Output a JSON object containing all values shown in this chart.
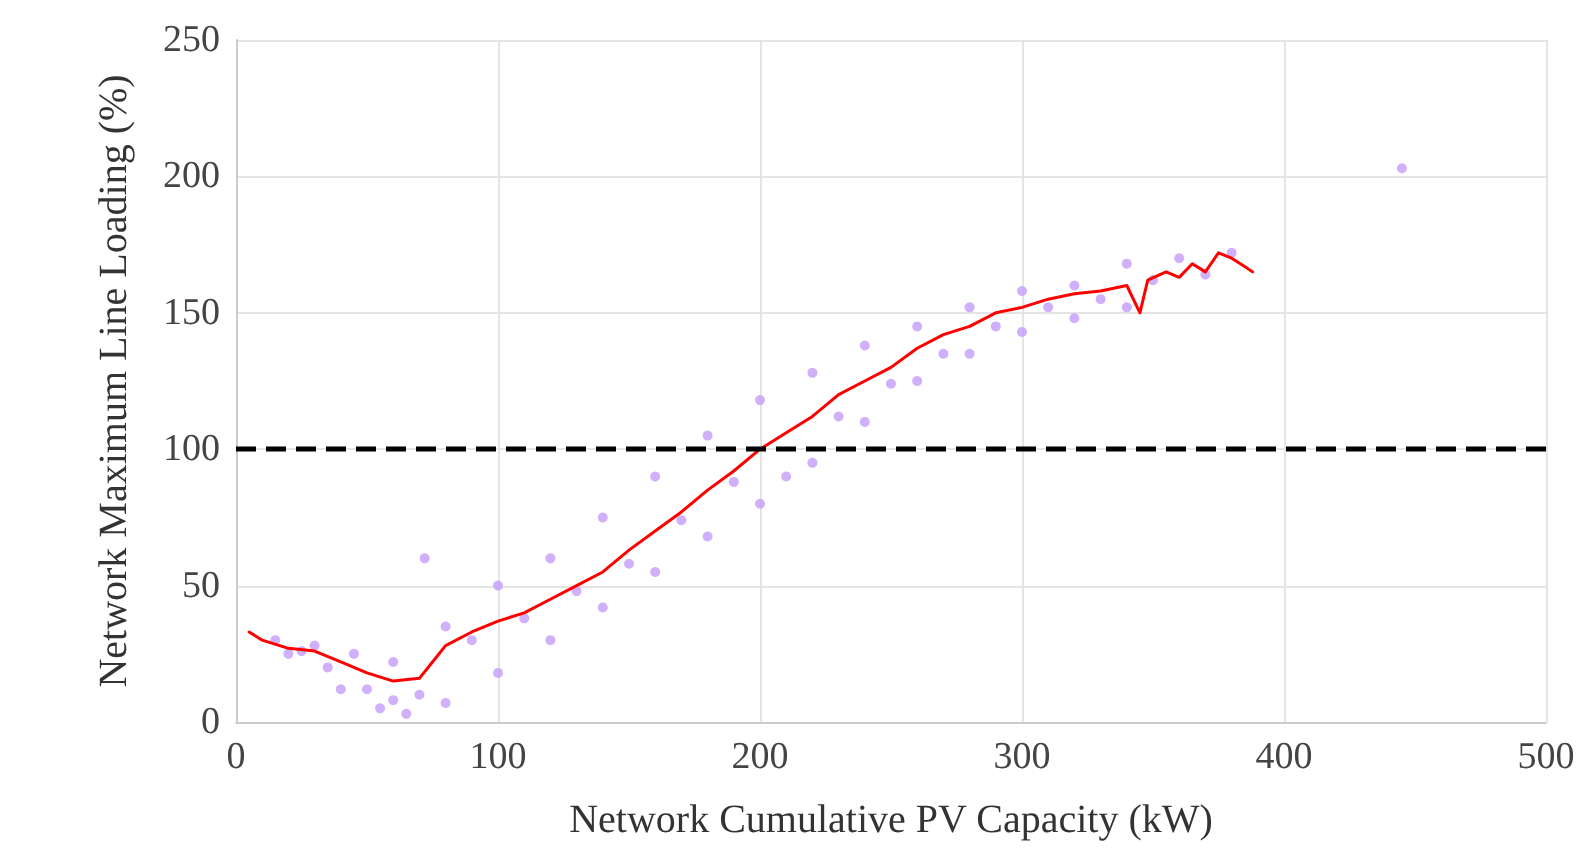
{
  "chart_data": {
    "type": "scatter",
    "xlabel": "Network Cumulative PV Capacity (kW)",
    "ylabel": "Network Maximum Line Loading (%)",
    "xlim": [
      0,
      500
    ],
    "xticks": [
      0,
      100,
      200,
      300,
      400,
      500
    ],
    "ylim": [
      0,
      250
    ],
    "yticks": [
      0,
      50,
      100,
      150,
      200,
      250
    ],
    "grid": true,
    "series": [
      {
        "color": "#c49cfa",
        "marker": "circle",
        "x": [
          15,
          30,
          45,
          60,
          72,
          80,
          100,
          120,
          140,
          160,
          180,
          200,
          220,
          240,
          260,
          280,
          300,
          320,
          340,
          360,
          380,
          20,
          40,
          55,
          65,
          80,
          100,
          120,
          140,
          160,
          180,
          200,
          220,
          240,
          260,
          280,
          300,
          320,
          340,
          25,
          35,
          50,
          60,
          70,
          90,
          110,
          130,
          150,
          170,
          190,
          210,
          230,
          250,
          270,
          290,
          310,
          330,
          350,
          370,
          445
        ],
        "values": [
          30,
          28,
          25,
          22,
          60,
          35,
          50,
          60,
          75,
          90,
          105,
          118,
          128,
          138,
          145,
          152,
          158,
          160,
          168,
          170,
          172,
          25,
          12,
          5,
          3,
          7,
          18,
          30,
          42,
          55,
          68,
          80,
          95,
          110,
          125,
          135,
          143,
          148,
          152,
          26,
          20,
          12,
          8,
          10,
          30,
          38,
          48,
          58,
          74,
          88,
          90,
          112,
          124,
          135,
          145,
          152,
          155,
          162,
          164,
          203
        ]
      },
      {
        "type": "line",
        "color": "#ff0000",
        "marker": "none",
        "x": [
          5,
          10,
          20,
          30,
          40,
          50,
          60,
          70,
          75,
          80,
          90,
          100,
          110,
          120,
          130,
          140,
          150,
          160,
          170,
          180,
          190,
          200,
          210,
          220,
          230,
          240,
          250,
          260,
          270,
          280,
          290,
          300,
          310,
          320,
          330,
          340,
          345,
          348,
          355,
          360,
          365,
          370,
          375,
          380,
          385,
          388
        ],
        "values": [
          33,
          30,
          27,
          26,
          22,
          18,
          15,
          16,
          22,
          28,
          33,
          37,
          40,
          45,
          50,
          55,
          63,
          70,
          77,
          85,
          92,
          100,
          106,
          112,
          120,
          125,
          130,
          137,
          142,
          145,
          150,
          152,
          155,
          157,
          158,
          160,
          150,
          162,
          165,
          163,
          168,
          165,
          172,
          170,
          167,
          165
        ]
      }
    ],
    "ref_lines": [
      {
        "axis": "y",
        "value": 100,
        "color": "#000000",
        "line_style": "dashed"
      }
    ]
  }
}
